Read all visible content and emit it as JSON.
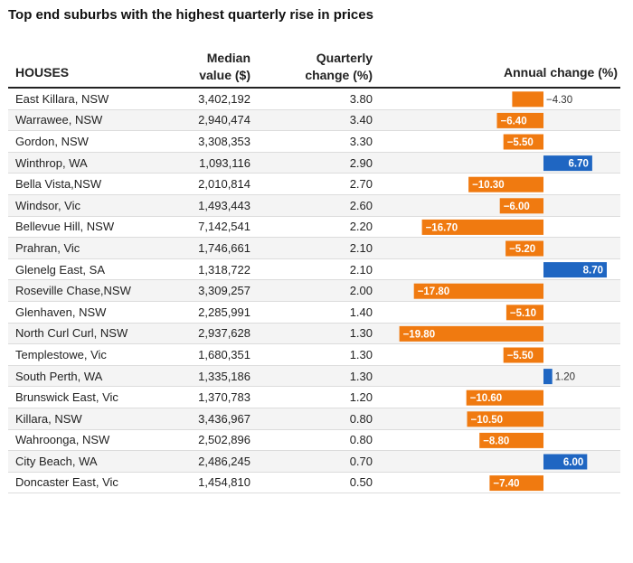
{
  "title": "Top end suburbs with the highest quarterly rise in prices",
  "headers": {
    "houses": "HOUSES",
    "median_line1": "Median",
    "median_line2": "value ($)",
    "quarterly_line1": "Quarterly",
    "quarterly_line2": "change (%)",
    "annual": "Annual change (%)"
  },
  "colors": {
    "negative": "#f07a10",
    "positive": "#1f66c2"
  },
  "chart_data": {
    "type": "table",
    "columns": [
      "HOUSES",
      "Median value ($)",
      "Quarterly change (%)",
      "Annual change (%)"
    ],
    "rows": [
      {
        "suburb": "East Killara, NSW",
        "median": "3,402,192",
        "quarterly": "3.80",
        "annual": -4.3,
        "annual_label": "−4.30"
      },
      {
        "suburb": "Warrawee, NSW",
        "median": "2,940,474",
        "quarterly": "3.40",
        "annual": -6.4,
        "annual_label": "−6.40"
      },
      {
        "suburb": "Gordon, NSW",
        "median": "3,308,353",
        "quarterly": "3.30",
        "annual": -5.5,
        "annual_label": "−5.50"
      },
      {
        "suburb": "Winthrop, WA",
        "median": "1,093,116",
        "quarterly": "2.90",
        "annual": 6.7,
        "annual_label": "6.70"
      },
      {
        "suburb": "Bella Vista,NSW",
        "median": "2,010,814",
        "quarterly": "2.70",
        "annual": -10.3,
        "annual_label": "−10.30"
      },
      {
        "suburb": "Windsor, Vic",
        "median": "1,493,443",
        "quarterly": "2.60",
        "annual": -6.0,
        "annual_label": "−6.00"
      },
      {
        "suburb": "Bellevue Hill, NSW",
        "median": "7,142,541",
        "quarterly": "2.20",
        "annual": -16.7,
        "annual_label": "−16.70"
      },
      {
        "suburb": "Prahran, Vic",
        "median": "1,746,661",
        "quarterly": "2.10",
        "annual": -5.2,
        "annual_label": "−5.20"
      },
      {
        "suburb": "Glenelg East, SA",
        "median": "1,318,722",
        "quarterly": "2.10",
        "annual": 8.7,
        "annual_label": "8.70"
      },
      {
        "suburb": "Roseville Chase,NSW",
        "median": "3,309,257",
        "quarterly": "2.00",
        "annual": -17.8,
        "annual_label": "−17.80"
      },
      {
        "suburb": "Glenhaven, NSW",
        "median": "2,285,991",
        "quarterly": "1.40",
        "annual": -5.1,
        "annual_label": "−5.10"
      },
      {
        "suburb": "North Curl Curl, NSW",
        "median": "2,937,628",
        "quarterly": "1.30",
        "annual": -19.8,
        "annual_label": "−19.80"
      },
      {
        "suburb": "Templestowe, Vic",
        "median": "1,680,351",
        "quarterly": "1.30",
        "annual": -5.5,
        "annual_label": "−5.50"
      },
      {
        "suburb": "South Perth, WA",
        "median": "1,335,186",
        "quarterly": "1.30",
        "annual": 1.2,
        "annual_label": "1.20"
      },
      {
        "suburb": "Brunswick East, Vic",
        "median": "1,370,783",
        "quarterly": "1.20",
        "annual": -10.6,
        "annual_label": "−10.60"
      },
      {
        "suburb": "Killara, NSW",
        "median": "3,436,967",
        "quarterly": "0.80",
        "annual": -10.5,
        "annual_label": "−10.50"
      },
      {
        "suburb": "Wahroonga, NSW",
        "median": "2,502,896",
        "quarterly": "0.80",
        "annual": -8.8,
        "annual_label": "−8.80"
      },
      {
        "suburb": "City Beach, WA",
        "median": "2,486,245",
        "quarterly": "0.70",
        "annual": 6.0,
        "annual_label": "6.00"
      },
      {
        "suburb": "Doncaster East, Vic",
        "median": "1,454,810",
        "quarterly": "0.50",
        "annual": -7.4,
        "annual_label": "−7.40"
      }
    ]
  }
}
